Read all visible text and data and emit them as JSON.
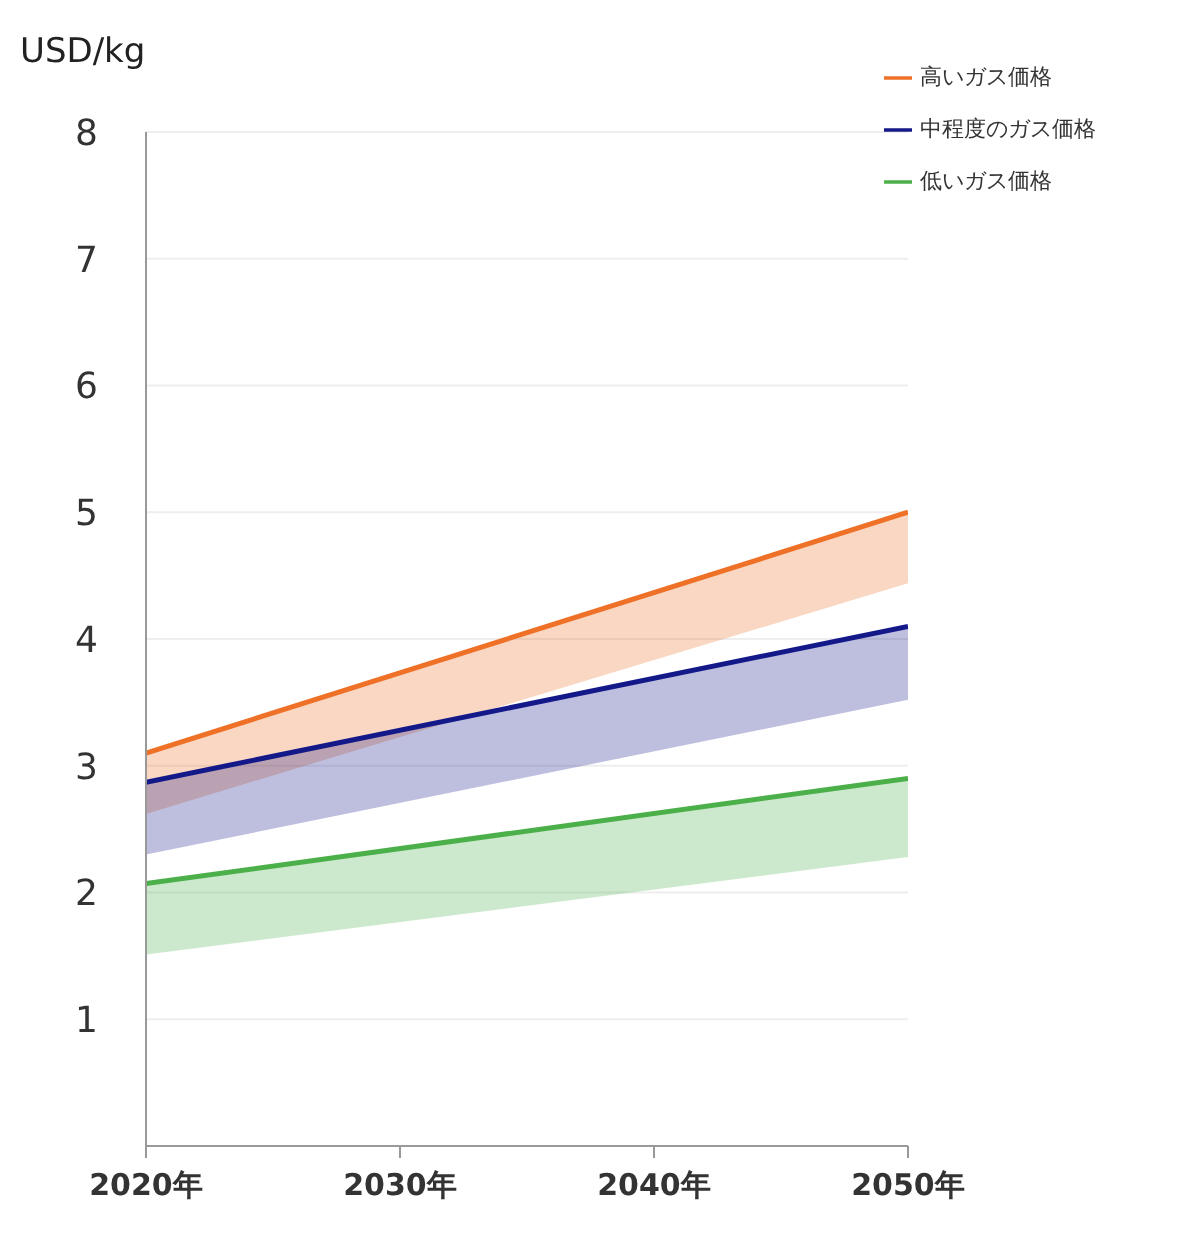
{
  "chart_data": {
    "type": "line",
    "ylabel": "USD/kg",
    "x": [
      2020,
      2050
    ],
    "xlim": [
      2020,
      2050
    ],
    "xticks": [
      {
        "value": 2020,
        "label": "2020年"
      },
      {
        "value": 2030,
        "label": "2030年"
      },
      {
        "value": 2040,
        "label": "2040年"
      },
      {
        "value": 2050,
        "label": "2050年"
      }
    ],
    "ylim": [
      0,
      8
    ],
    "yticks": [
      1,
      2,
      3,
      4,
      5,
      6,
      7,
      8
    ],
    "grid": "y",
    "legend": "top right",
    "line_style": "solid",
    "marker": "none",
    "series": [
      {
        "name": "高いガス価格",
        "color": "#ee7127",
        "values": [
          3.1,
          5.0
        ],
        "lower": [
          2.62,
          4.44
        ],
        "upper": [
          3.1,
          5.0
        ]
      },
      {
        "name": "中程度のガス価格",
        "color": "#14198a",
        "values": [
          2.87,
          4.1
        ],
        "lower": [
          2.3,
          3.52
        ],
        "upper": [
          2.87,
          4.1
        ]
      },
      {
        "name": "低いガス価格",
        "color": "#4cb04a",
        "values": [
          2.07,
          2.9
        ],
        "lower": [
          1.51,
          2.28
        ],
        "upper": [
          2.07,
          2.9
        ]
      }
    ]
  }
}
